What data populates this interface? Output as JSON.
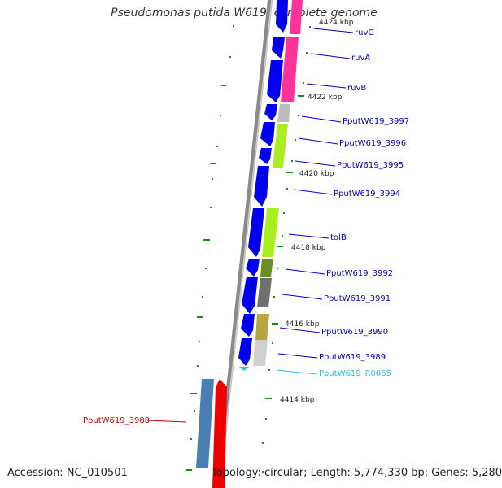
{
  "title": "Pseudomonas putida W619, complete genome",
  "footer": {
    "accession": "Accession: NC_010501",
    "summary": "Topology: circular; Length: 5,774,330 bp; Genes: 5,280"
  },
  "kbp_markers": [
    "4424 kbp",
    "4422 kbp",
    "4420 kbp",
    "4418 kbp",
    "4416 kbp",
    "4414 kbp"
  ],
  "gene_labels": [
    {
      "text": "ruvC",
      "color": "#0000cc"
    },
    {
      "text": "ruvA",
      "color": "#0000cc"
    },
    {
      "text": "ruvB",
      "color": "#0000cc"
    },
    {
      "text": "PputW619_3997",
      "color": "#0000cc"
    },
    {
      "text": "PputW619_3996",
      "color": "#0000cc"
    },
    {
      "text": "PputW619_3995",
      "color": "#0000cc"
    },
    {
      "text": "PputW619_3994",
      "color": "#0000cc"
    },
    {
      "text": "tolB",
      "color": "#0000cc"
    },
    {
      "text": "PputW619_3992",
      "color": "#0000cc"
    },
    {
      "text": "PputW619_3991",
      "color": "#0000cc"
    },
    {
      "text": "PputW619_3990",
      "color": "#0000cc"
    },
    {
      "text": "PputW619_3989",
      "color": "#0000cc"
    },
    {
      "text": "PputW619_R0065",
      "color": "#33bbdd"
    },
    {
      "text": "PputW619_3988",
      "color": "#cc0000"
    }
  ],
  "colors": {
    "backbone": "#8a8a8a",
    "cds": "#0000ee",
    "trna": "#33bbdd",
    "reverse_cds": "#ee0000",
    "reverse_cds_steel": "#4a7fb5",
    "tick": "#1a8a1a"
  }
}
